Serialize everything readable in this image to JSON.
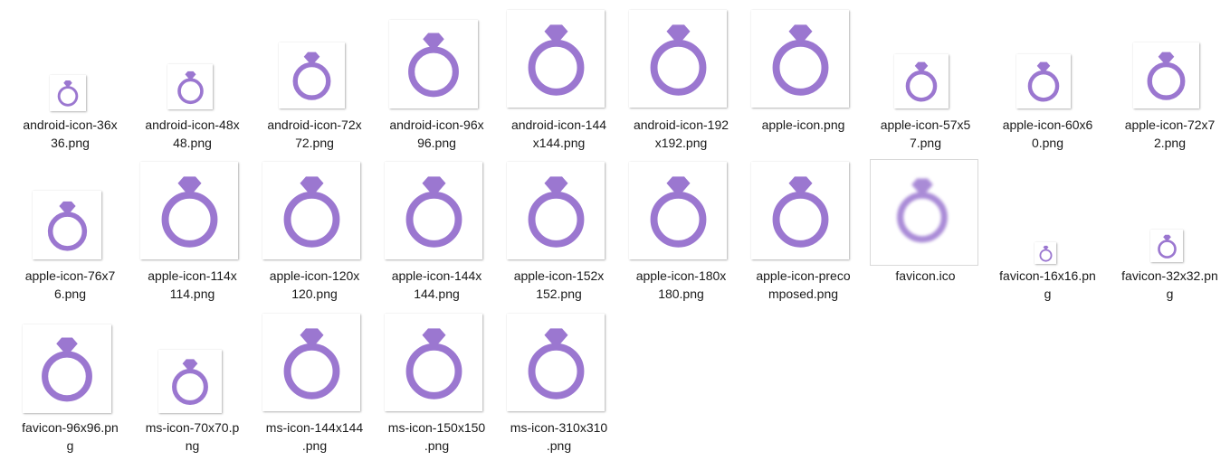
{
  "colors": {
    "icon": "#9b77d0",
    "text": "#1a1a1a",
    "background": "#ffffff"
  },
  "icon_name": "ring-icon",
  "files": [
    {
      "name": "android-icon-36x36.png",
      "label": "android-icon-36x\n36.png"
    },
    {
      "name": "android-icon-48x48.png",
      "label": "android-icon-48x\n48.png"
    },
    {
      "name": "android-icon-72x72.png",
      "label": "android-icon-72x\n72.png"
    },
    {
      "name": "android-icon-96x96.png",
      "label": "android-icon-96x\n96.png"
    },
    {
      "name": "android-icon-144x144.png",
      "label": "android-icon-144\nx144.png"
    },
    {
      "name": "android-icon-192x192.png",
      "label": "android-icon-192\nx192.png"
    },
    {
      "name": "apple-icon.png",
      "label": "apple-icon.png"
    },
    {
      "name": "apple-icon-57x57.png",
      "label": "apple-icon-57x5\n7.png"
    },
    {
      "name": "apple-icon-60x60.png",
      "label": "apple-icon-60x6\n0.png"
    },
    {
      "name": "apple-icon-72x72.png",
      "label": "apple-icon-72x7\n2.png"
    },
    {
      "name": "apple-icon-76x76.png",
      "label": "apple-icon-76x7\n6.png"
    },
    {
      "name": "apple-icon-114x114.png",
      "label": "apple-icon-114x\n114.png"
    },
    {
      "name": "apple-icon-120x120.png",
      "label": "apple-icon-120x\n120.png"
    },
    {
      "name": "apple-icon-144x144.png",
      "label": "apple-icon-144x\n144.png"
    },
    {
      "name": "apple-icon-152x152.png",
      "label": "apple-icon-152x\n152.png"
    },
    {
      "name": "apple-icon-180x180.png",
      "label": "apple-icon-180x\n180.png"
    },
    {
      "name": "apple-icon-precomposed.png",
      "label": "apple-icon-preco\nmposed.png"
    },
    {
      "name": "favicon.ico",
      "label": "favicon.ico"
    },
    {
      "name": "favicon-16x16.png",
      "label": "favicon-16x16.pn\ng"
    },
    {
      "name": "favicon-32x32.png",
      "label": "favicon-32x32.pn\ng"
    },
    {
      "name": "favicon-96x96.png",
      "label": "favicon-96x96.pn\ng"
    },
    {
      "name": "ms-icon-70x70.png",
      "label": "ms-icon-70x70.p\nng"
    },
    {
      "name": "ms-icon-144x144.png",
      "label": "ms-icon-144x144\n.png"
    },
    {
      "name": "ms-icon-150x150.png",
      "label": "ms-icon-150x150\n.png"
    },
    {
      "name": "ms-icon-310x310.png",
      "label": "ms-icon-310x310\n.png"
    }
  ]
}
